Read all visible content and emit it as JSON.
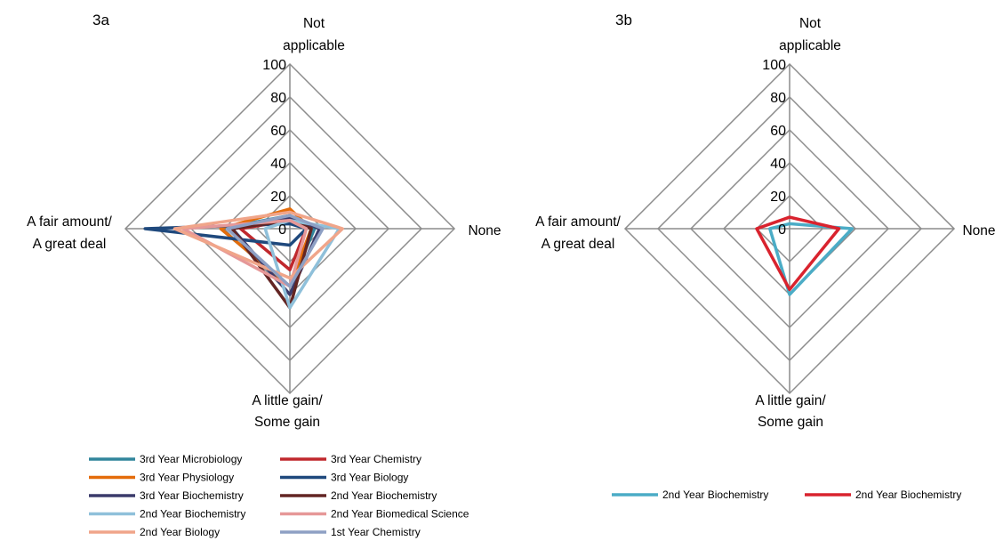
{
  "chart_data": [
    {
      "type": "radar",
      "panel_label": "3a",
      "axes": [
        {
          "name": "Not applicable",
          "lines": [
            "Not",
            "applicable"
          ]
        },
        {
          "name": "None",
          "lines": [
            "None"
          ]
        },
        {
          "name": "A little gain/ Some gain",
          "lines": [
            "A little gain/",
            "Some gain"
          ]
        },
        {
          "name": "A fair amount/ A great deal",
          "lines": [
            "A fair amount/",
            "A great deal"
          ]
        }
      ],
      "ticks": [
        0,
        20,
        40,
        60,
        80,
        100
      ],
      "range": [
        0,
        100
      ],
      "legend_position": "bottom",
      "series": [
        {
          "name": "3rd Year Microbiology",
          "color": "#31859C",
          "values": [
            8,
            15,
            35,
            42
          ]
        },
        {
          "name": "3rd Year Chemistry",
          "color": "#C0282D",
          "values": [
            5,
            10,
            25,
            30
          ]
        },
        {
          "name": "3rd Year Physiology",
          "color": "#E46C0A",
          "values": [
            12,
            13,
            35,
            42
          ]
        },
        {
          "name": "3rd Year Biology",
          "color": "#1F497D",
          "values": [
            3,
            10,
            10,
            88
          ]
        },
        {
          "name": "3rd Year Biochemistry",
          "color": "#3B3B6B",
          "values": [
            7,
            18,
            40,
            35
          ]
        },
        {
          "name": "2nd Year Biochemistry",
          "color": "#632523",
          "values": [
            5,
            13,
            48,
            35
          ]
        },
        {
          "name": "2nd Year Biochemistry",
          "color": "#8FC0DA",
          "values": [
            5,
            30,
            48,
            15
          ]
        },
        {
          "name": "2nd Year Biomedical Science",
          "color": "#E69898",
          "values": [
            5,
            10,
            35,
            65
          ]
        },
        {
          "name": "2nd Year Biology",
          "color": "#F0A58A",
          "values": [
            10,
            32,
            30,
            70
          ]
        },
        {
          "name": "1st Year Chemistry",
          "color": "#8EA0C4",
          "values": [
            8,
            20,
            35,
            38
          ]
        }
      ]
    },
    {
      "type": "radar",
      "panel_label": "3b",
      "axes": [
        {
          "name": "Not applicable",
          "lines": [
            "Not",
            "applicable"
          ]
        },
        {
          "name": "None",
          "lines": [
            "None"
          ]
        },
        {
          "name": "A little gain/ Some gain",
          "lines": [
            "A little gain/",
            "Some gain"
          ]
        },
        {
          "name": "A fair amount/ A great deal",
          "lines": [
            "A fair amount/",
            "A great deal"
          ]
        }
      ],
      "ticks": [
        0,
        20,
        40,
        60,
        80,
        100
      ],
      "range": [
        0,
        100
      ],
      "legend_position": "bottom",
      "series": [
        {
          "name": "2nd Year Biochemistry",
          "color": "#4BACC6",
          "values": [
            3,
            38,
            40,
            12
          ]
        },
        {
          "name": "2nd Year Biochemistry",
          "color": "#D9232E",
          "values": [
            7,
            30,
            37,
            20
          ]
        }
      ]
    }
  ]
}
